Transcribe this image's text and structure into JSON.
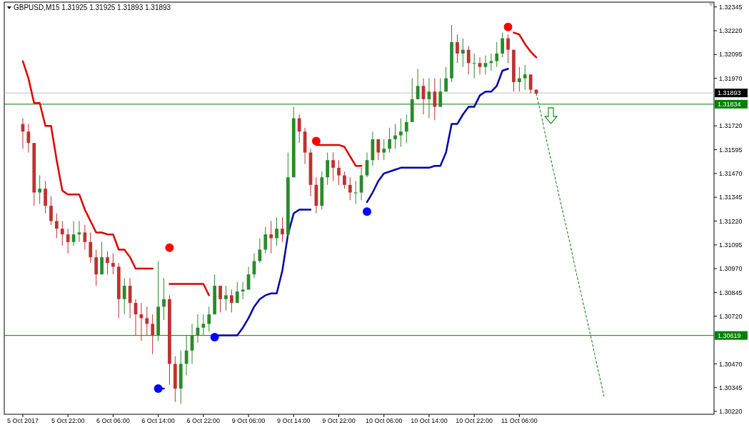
{
  "chart_data": {
    "type": "candlestick",
    "title": "GBPUSD,M15  1.31925 1.31925 1.31893 1.31893",
    "categories": [
      "5 Oct 2017",
      null,
      null,
      null,
      null,
      null,
      null,
      null,
      "5 Oct 22:00",
      null,
      null,
      null,
      null,
      null,
      null,
      null,
      "6 Oct 06:00",
      null,
      null,
      null,
      null,
      null,
      null,
      null,
      "6 Oct 14:00",
      null,
      null,
      null,
      null,
      null,
      null,
      null,
      "6 Oct 22:00",
      null,
      null,
      null,
      null,
      null,
      null,
      null,
      "9 Oct 06:00",
      null,
      null,
      null,
      null,
      null,
      null,
      null,
      "9 Oct 14:00",
      null,
      null,
      null,
      null,
      null,
      null,
      null,
      "9 Oct 22:00",
      null,
      null,
      null,
      null,
      null,
      null,
      null,
      "10 Oct 06:00",
      null,
      null,
      null,
      null,
      null,
      null,
      null,
      "10 Oct 14:00",
      null,
      null,
      null,
      null,
      null,
      null,
      null,
      "10 Oct 22:00",
      null,
      null,
      null,
      null,
      null,
      null,
      null,
      "11 Oct 06:00",
      null,
      null,
      null,
      null,
      null,
      null,
      null,
      null,
      null,
      null,
      null,
      null,
      null,
      null,
      null,
      null,
      null,
      null,
      null,
      null,
      null,
      null,
      null,
      null,
      null,
      null,
      null,
      null,
      null,
      null,
      null,
      null,
      null,
      null
    ],
    "ohlc": [
      [
        1.3173,
        1.3176,
        1.316,
        1.3169
      ],
      [
        1.3169,
        1.3173,
        1.3158,
        1.3163
      ],
      [
        1.3163,
        1.3163,
        1.313,
        1.3137
      ],
      [
        1.3137,
        1.3146,
        1.3131,
        1.3139
      ],
      [
        1.3139,
        1.3143,
        1.3126,
        1.313
      ],
      [
        1.313,
        1.3135,
        1.312,
        1.3122
      ],
      [
        1.3122,
        1.3126,
        1.3113,
        1.3118
      ],
      [
        1.3118,
        1.3122,
        1.3109,
        1.3115
      ],
      [
        1.3115,
        1.3118,
        1.3105,
        1.3111
      ],
      [
        1.3111,
        1.3122,
        1.3109,
        1.3115
      ],
      [
        1.3115,
        1.3122,
        1.3111,
        1.3116
      ],
      [
        1.3116,
        1.312,
        1.3107,
        1.3111
      ],
      [
        1.3111,
        1.3116,
        1.31,
        1.3103
      ],
      [
        1.3103,
        1.3107,
        1.3088,
        1.3094
      ],
      [
        1.3094,
        1.3111,
        1.3094,
        1.3103
      ],
      [
        1.3103,
        1.3106,
        1.3094,
        1.31
      ],
      [
        1.31,
        1.3105,
        1.3094,
        1.3098
      ],
      [
        1.3098,
        1.31,
        1.3071,
        1.3081
      ],
      [
        1.3081,
        1.3092,
        1.3073,
        1.3088
      ],
      [
        1.3088,
        1.3092,
        1.3071,
        1.3079
      ],
      [
        1.3079,
        1.3081,
        1.3062,
        1.3073
      ],
      [
        1.3073,
        1.3079,
        1.3059,
        1.3071
      ],
      [
        1.3071,
        1.3077,
        1.3062,
        1.3068
      ],
      [
        1.3068,
        1.3073,
        1.3052,
        1.3062
      ],
      [
        1.3062,
        1.3101,
        1.3059,
        1.3077
      ],
      [
        1.3077,
        1.3092,
        1.307,
        1.3081
      ],
      [
        1.3081,
        1.3083,
        1.3036,
        1.3047
      ],
      [
        1.3047,
        1.3051,
        1.3027,
        1.3034
      ],
      [
        1.3034,
        1.3054,
        1.3026,
        1.3047
      ],
      [
        1.3047,
        1.3062,
        1.3041,
        1.3054
      ],
      [
        1.3054,
        1.3068,
        1.3047,
        1.3062
      ],
      [
        1.3062,
        1.3073,
        1.3058,
        1.3066
      ],
      [
        1.3066,
        1.3073,
        1.3062,
        1.3068
      ],
      [
        1.3068,
        1.3077,
        1.3064,
        1.3073
      ],
      [
        1.3073,
        1.3094,
        1.3073,
        1.3088
      ],
      [
        1.3088,
        1.3088,
        1.3074,
        1.3081
      ],
      [
        1.3081,
        1.3088,
        1.3075,
        1.3083
      ],
      [
        1.3083,
        1.3086,
        1.3074,
        1.3079
      ],
      [
        1.3079,
        1.309,
        1.3079,
        1.3085
      ],
      [
        1.3085,
        1.309,
        1.3081,
        1.3086
      ],
      [
        1.3086,
        1.3098,
        1.3086,
        1.3094
      ],
      [
        1.3094,
        1.3105,
        1.3092,
        1.3101
      ],
      [
        1.3101,
        1.3113,
        1.31,
        1.3107
      ],
      [
        1.3107,
        1.3119,
        1.3105,
        1.3115
      ],
      [
        1.3115,
        1.3122,
        1.3105,
        1.3113
      ],
      [
        1.3113,
        1.3124,
        1.3109,
        1.3118
      ],
      [
        1.3118,
        1.3124,
        1.3111,
        1.3115
      ],
      [
        1.3115,
        1.3158,
        1.3113,
        1.3145
      ],
      [
        1.3145,
        1.3182,
        1.3145,
        1.3176
      ],
      [
        1.3176,
        1.3178,
        1.3163,
        1.3169
      ],
      [
        1.3169,
        1.3171,
        1.3152,
        1.3158
      ],
      [
        1.3158,
        1.316,
        1.3135,
        1.3141
      ],
      [
        1.3141,
        1.3145,
        1.3126,
        1.313
      ],
      [
        1.313,
        1.3148,
        1.3128,
        1.3145
      ],
      [
        1.3145,
        1.3158,
        1.3141,
        1.3154
      ],
      [
        1.3154,
        1.3158,
        1.3143,
        1.315
      ],
      [
        1.315,
        1.3154,
        1.3141,
        1.3146
      ],
      [
        1.3146,
        1.3148,
        1.3139,
        1.3141
      ],
      [
        1.3141,
        1.3145,
        1.3133,
        1.3137
      ],
      [
        1.3137,
        1.3143,
        1.3131,
        1.3137
      ],
      [
        1.3137,
        1.315,
        1.3133,
        1.3146
      ],
      [
        1.3146,
        1.3158,
        1.3145,
        1.3154
      ],
      [
        1.3154,
        1.3169,
        1.3151,
        1.3165
      ],
      [
        1.3165,
        1.3165,
        1.3154,
        1.3158
      ],
      [
        1.3158,
        1.3165,
        1.3154,
        1.316
      ],
      [
        1.316,
        1.3171,
        1.3158,
        1.3165
      ],
      [
        1.3165,
        1.3173,
        1.316,
        1.3167
      ],
      [
        1.3167,
        1.3176,
        1.3161,
        1.3169
      ],
      [
        1.3169,
        1.3178,
        1.3163,
        1.3174
      ],
      [
        1.3174,
        1.3197,
        1.3174,
        1.3186
      ],
      [
        1.3186,
        1.3202,
        1.3186,
        1.3193
      ],
      [
        1.3193,
        1.3197,
        1.3178,
        1.3186
      ],
      [
        1.3186,
        1.3197,
        1.3176,
        1.319
      ],
      [
        1.319,
        1.3197,
        1.3175,
        1.3182
      ],
      [
        1.3182,
        1.3197,
        1.3182,
        1.319
      ],
      [
        1.319,
        1.3203,
        1.319,
        1.3197
      ],
      [
        1.3197,
        1.3225,
        1.3195,
        1.3216
      ],
      [
        1.3216,
        1.322,
        1.3205,
        1.321
      ],
      [
        1.321,
        1.3218,
        1.3203,
        1.3212
      ],
      [
        1.3212,
        1.3214,
        1.3199,
        1.3205
      ],
      [
        1.3205,
        1.321,
        1.3197,
        1.3205
      ],
      [
        1.3205,
        1.3208,
        1.3199,
        1.3203
      ],
      [
        1.3203,
        1.3209,
        1.3199,
        1.3205
      ],
      [
        1.3205,
        1.321,
        1.3201,
        1.3206
      ],
      [
        1.3206,
        1.3216,
        1.3203,
        1.321
      ],
      [
        1.321,
        1.3221,
        1.3208,
        1.3218
      ],
      [
        1.3218,
        1.322,
        1.3205,
        1.3212
      ],
      [
        1.3212,
        1.3212,
        1.319,
        1.3195
      ],
      [
        1.3195,
        1.3203,
        1.319,
        1.3197
      ],
      [
        1.3197,
        1.3204,
        1.3191,
        1.3199
      ],
      [
        1.3199,
        1.3199,
        1.3189,
        1.3191
      ],
      [
        1.3191,
        1.3191,
        1.3189,
        1.3189
      ],
      null,
      null,
      null,
      null,
      null,
      null,
      null,
      null,
      null,
      null,
      null,
      null,
      null,
      null,
      null,
      null,
      null,
      null,
      null,
      null,
      null,
      null,
      null,
      null,
      null,
      null,
      null,
      null,
      null,
      null,
      null
    ],
    "ylim": [
      1.30205,
      1.3237
    ],
    "yticks": [
      {
        "value": 1.3022,
        "label": "1.30220"
      },
      1.30345,
      {
        "value": 1.3047,
        "label": "1.30470"
      },
      {
        "value": 1.3072,
        "label": "1.30720"
      },
      1.30845,
      {
        "value": 1.3097,
        "label": "1.30970"
      },
      1.31095,
      {
        "value": 1.3122,
        "label": "1.31220"
      },
      1.31345,
      {
        "value": 1.3147,
        "label": "1.31470"
      },
      1.31595,
      {
        "value": 1.3172,
        "label": "1.31720"
      },
      {
        "value": 1.3197,
        "label": "1.31970"
      },
      1.32095,
      {
        "value": 1.3222,
        "label": "1.32220"
      },
      1.32345
    ],
    "series": [
      {
        "type": "line",
        "color": "#dd0000",
        "values": [
          1.3206,
          1.3197,
          1.3184,
          1.3184,
          1.3172,
          1.3172,
          1.3154,
          1.3138,
          1.3136,
          1.3136,
          1.3136,
          1.3128,
          1.3122,
          1.3116,
          1.3116,
          1.3115,
          1.3115,
          1.3107,
          1.3107,
          1.3103,
          1.3097,
          1.3097,
          1.3097,
          1.3097,
          null,
          null,
          1.3089,
          1.3089,
          1.3089,
          1.3089,
          1.3089,
          1.3089,
          1.3089,
          1.3083,
          null,
          null,
          null,
          null,
          null,
          null,
          null,
          null,
          null,
          null,
          null,
          null,
          null,
          null,
          null,
          null,
          null,
          null,
          1.3162,
          1.3162,
          1.3162,
          1.3162,
          1.3162,
          1.3161,
          1.3156,
          1.3151,
          1.3151,
          null,
          null,
          null,
          null,
          null,
          null,
          null,
          null,
          null,
          null,
          null,
          null,
          null,
          null,
          null,
          null,
          null,
          null,
          null,
          null,
          null,
          null,
          null,
          null,
          null,
          null,
          1.3221,
          1.322,
          1.3215,
          1.3211,
          1.3208,
          null,
          null,
          null,
          null,
          null,
          null,
          null,
          null,
          null,
          null,
          null,
          null,
          null,
          null,
          null,
          null,
          null,
          null,
          null,
          null,
          null,
          null,
          null,
          null,
          null,
          null,
          null,
          null,
          null,
          null,
          null
        ]
      },
      {
        "type": "line",
        "color": "#0000aa",
        "values": [
          null,
          null,
          null,
          null,
          null,
          null,
          null,
          null,
          null,
          null,
          null,
          null,
          null,
          null,
          null,
          null,
          null,
          null,
          null,
          null,
          null,
          null,
          null,
          null,
          1.3034,
          1.3034,
          null,
          null,
          null,
          null,
          null,
          null,
          null,
          null,
          1.3062,
          1.3062,
          1.3062,
          1.3062,
          1.3062,
          1.3066,
          1.3071,
          1.3077,
          1.3081,
          1.3083,
          1.3084,
          1.3084,
          1.3096,
          1.3115,
          1.3126,
          1.3128,
          1.3128,
          1.3128,
          null,
          null,
          null,
          null,
          null,
          null,
          null,
          null,
          null,
          1.3132,
          1.3137,
          1.3143,
          1.3147,
          1.3148,
          1.3149,
          1.315,
          1.315,
          1.315,
          1.315,
          1.315,
          1.315,
          1.3151,
          1.3151,
          1.3158,
          1.3173,
          1.3173,
          1.3178,
          1.3182,
          1.3182,
          1.3188,
          1.319,
          1.319,
          1.3193,
          1.3201,
          1.3202,
          null,
          null,
          null,
          null,
          null,
          null,
          null,
          null,
          null,
          null,
          null,
          null,
          null,
          null,
          null,
          null,
          null,
          null,
          null,
          null,
          null,
          null,
          null,
          null,
          null,
          null,
          null,
          null,
          null,
          null,
          null,
          null,
          null,
          null,
          null,
          null
        ]
      },
      {
        "type": "scatter",
        "color": "#ff0000",
        "marker": "circle",
        "values": [
          null,
          null,
          null,
          null,
          null,
          null,
          null,
          null,
          null,
          null,
          null,
          null,
          null,
          null,
          null,
          null,
          null,
          null,
          null,
          null,
          null,
          null,
          null,
          null,
          null,
          null,
          1.3108,
          null,
          null,
          null,
          null,
          null,
          null,
          null,
          null,
          null,
          null,
          null,
          null,
          null,
          null,
          null,
          null,
          null,
          null,
          null,
          null,
          null,
          null,
          null,
          null,
          null,
          1.3164,
          null,
          null,
          null,
          null,
          null,
          null,
          null,
          null,
          null,
          null,
          null,
          null,
          null,
          null,
          null,
          null,
          null,
          null,
          null,
          null,
          null,
          null,
          null,
          null,
          null,
          null,
          null,
          null,
          null,
          null,
          null,
          null,
          null,
          1.3224,
          null,
          null,
          null,
          null,
          null,
          null,
          null,
          null,
          null,
          null,
          null,
          null,
          null,
          null,
          null,
          null,
          null,
          null,
          null,
          null,
          null,
          null,
          null,
          null,
          null,
          null,
          null,
          null,
          null,
          null,
          null,
          null,
          null,
          null,
          null,
          null
        ]
      },
      {
        "type": "scatter",
        "color": "#0000ff",
        "marker": "circle",
        "values": [
          null,
          null,
          null,
          null,
          null,
          null,
          null,
          null,
          null,
          null,
          null,
          null,
          null,
          null,
          null,
          null,
          null,
          null,
          null,
          null,
          null,
          null,
          null,
          null,
          1.3034,
          null,
          null,
          null,
          null,
          null,
          null,
          null,
          null,
          null,
          1.3061,
          null,
          null,
          null,
          null,
          null,
          null,
          null,
          null,
          null,
          null,
          null,
          null,
          null,
          null,
          null,
          null,
          null,
          null,
          null,
          null,
          null,
          null,
          null,
          null,
          null,
          null,
          1.3127,
          null,
          null,
          null,
          null,
          null,
          null,
          null,
          null,
          null,
          null,
          null,
          null,
          null,
          null,
          null,
          null,
          null,
          null,
          null,
          null,
          null,
          null,
          null,
          null,
          null,
          null,
          null,
          null,
          null,
          null,
          null,
          null,
          null,
          null,
          null,
          null,
          null,
          null,
          null,
          null,
          null,
          null,
          null,
          null,
          null,
          null,
          null,
          null,
          null,
          null,
          null,
          null,
          null,
          null,
          null,
          null,
          null,
          null,
          null,
          null,
          null
        ]
      },
      {
        "type": "line",
        "color": "#008000",
        "line_style": "dashed",
        "values": [
          null,
          null,
          null,
          null,
          null,
          null,
          null,
          null,
          null,
          null,
          null,
          null,
          null,
          null,
          null,
          null,
          null,
          null,
          null,
          null,
          null,
          null,
          null,
          null,
          null,
          null,
          null,
          null,
          null,
          null,
          null,
          null,
          null,
          null,
          null,
          null,
          null,
          null,
          null,
          null,
          null,
          null,
          null,
          null,
          null,
          null,
          null,
          null,
          null,
          null,
          null,
          null,
          null,
          null,
          null,
          null,
          null,
          null,
          null,
          null,
          null,
          null,
          null,
          null,
          null,
          null,
          null,
          null,
          null,
          null,
          null,
          null,
          null,
          null,
          null,
          null,
          null,
          null,
          null,
          null,
          null,
          null,
          null,
          null,
          null,
          null,
          null,
          null,
          null,
          null,
          null,
          1.3189,
          1.3176,
          1.3162,
          1.3149,
          1.3136,
          1.3123,
          1.311,
          1.3096,
          1.3083,
          1.307,
          1.3057,
          1.3043,
          1.303,
          null,
          null,
          null,
          null,
          null,
          null,
          null,
          null,
          null,
          null,
          null,
          null,
          null,
          null,
          null,
          null,
          null,
          null,
          null
        ]
      }
    ],
    "ref_lines": [
      {
        "axis": "y",
        "value": 1.31893,
        "label": "1.31893",
        "color": "#c0c0c0"
      },
      {
        "axis": "y",
        "value": 1.31834,
        "label": "1.31834",
        "color": "#008000"
      },
      {
        "axis": "y",
        "value": 1.30619,
        "label": "1.30619",
        "color": "#008000"
      }
    ]
  }
}
